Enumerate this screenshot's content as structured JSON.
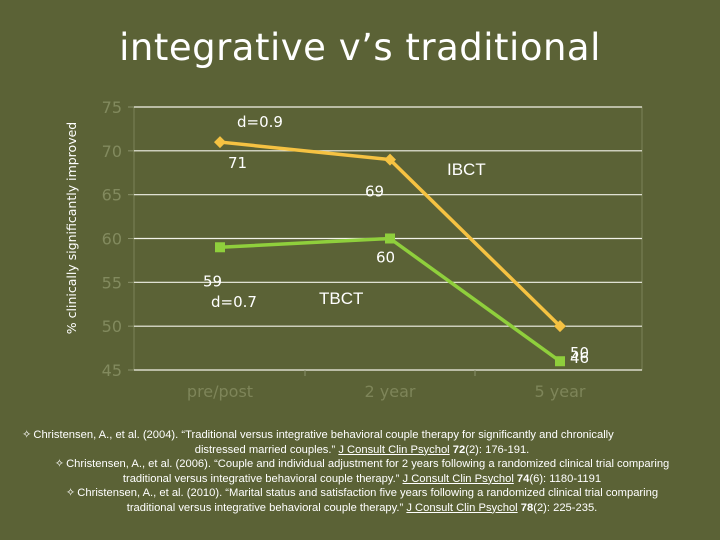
{
  "slide": {
    "title": "integrative v’s traditional"
  },
  "chart_data": {
    "type": "line",
    "ylabel": "% clinically significantly improved",
    "xlabel": "",
    "categories": [
      "pre/post",
      "2 year",
      "5 year"
    ],
    "ylim": [
      45,
      75
    ],
    "yticks": [
      45,
      50,
      55,
      60,
      65,
      70,
      75
    ],
    "grid": true,
    "series": [
      {
        "name": "IBCT",
        "values": [
          71,
          69,
          50
        ],
        "color": "#f5c242",
        "marker": "diamond",
        "labels": [
          "71",
          "69",
          "50"
        ]
      },
      {
        "name": "TBCT",
        "values": [
          59,
          60,
          46
        ],
        "color": "#8fcf3c",
        "marker": "square",
        "labels": [
          "59",
          "60",
          "46"
        ]
      }
    ],
    "annotations": [
      {
        "text": "d=0.9"
      },
      {
        "text": "d=0.7"
      }
    ]
  },
  "references": [
    {
      "bullet": "✧",
      "l1": "Christensen, A., et al. (2004). “Traditional versus integrative behavioral couple therapy for significantly        and chronically",
      "l2a": "distressed married couples.” ",
      "journal": "J Consult Clin Psychol",
      "volume": "72",
      "l2b": "(2): 176-191."
    },
    {
      "bullet": "✧",
      "l1": "Christensen, A., et al. (2006). “Couple and individual adjustment for 2 years following a randomized clinical trial comparing",
      "l2a": "traditional versus integrative behavioral couple therapy.” ",
      "journal": "J Consult Clin Psychol",
      "volume": "74",
      "l2b": "(6): 1180-1191"
    },
    {
      "bullet": "✧",
      "l1": "Christensen, A., et al. (2010). “Marital status and satisfaction five years following a randomized clinical trial comparing",
      "l2a": "traditional versus integrative behavioral couple therapy.” ",
      "journal": "J Consult Clin Psychol",
      "volume": "78",
      "l2b": "(2): 225-235."
    }
  ]
}
